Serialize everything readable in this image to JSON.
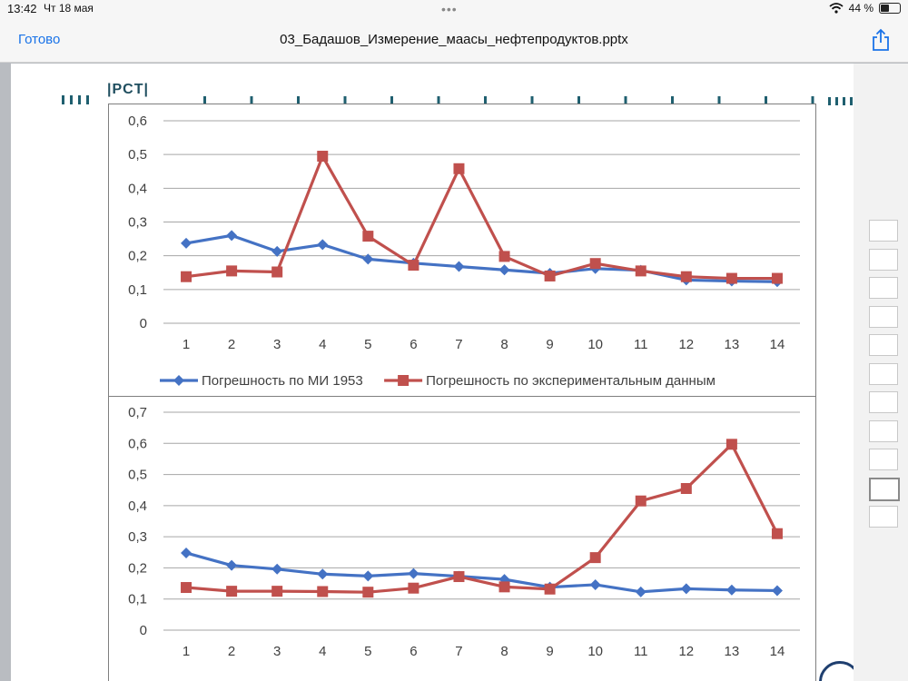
{
  "status_bar": {
    "time": "13:42",
    "date": "Чт 18 мая",
    "battery": "44 %",
    "battery_level": 0.44
  },
  "nav": {
    "done_label": "Готово",
    "file_title": "03_Бадашов_Измерение_маасы_нефтепродуктов.pptx"
  },
  "slide": {
    "logo_text": "|PCT|"
  },
  "colors": {
    "series_blue": "#4472c4",
    "series_red": "#c0504d",
    "link_blue": "#1a73e8"
  },
  "icons": {
    "share": "share-icon",
    "wifi": "wifi-icon",
    "battery": "battery-icon"
  },
  "thumbnails": {
    "count": 11,
    "active_index": 9
  },
  "chart_data": [
    {
      "type": "line",
      "categories": [
        "1",
        "2",
        "3",
        "4",
        "5",
        "6",
        "7",
        "8",
        "9",
        "10",
        "11",
        "12",
        "13",
        "14"
      ],
      "ylim": [
        0,
        0.6
      ],
      "yticks": [
        "0",
        "0,1",
        "0,2",
        "0,3",
        "0,4",
        "0,5",
        "0,6"
      ],
      "grid": true,
      "legend_position": "bottom",
      "series": [
        {
          "name": "Погрешность по МИ 1953",
          "marker": "diamond",
          "values": [
            0.237,
            0.26,
            0.213,
            0.233,
            0.19,
            0.178,
            0.168,
            0.158,
            0.148,
            0.162,
            0.157,
            0.128,
            0.125,
            0.123
          ]
        },
        {
          "name": "Погрешность по экспериментальным данным",
          "marker": "square",
          "values": [
            0.138,
            0.155,
            0.152,
            0.495,
            0.258,
            0.172,
            0.458,
            0.198,
            0.14,
            0.177,
            0.155,
            0.138,
            0.133,
            0.133
          ]
        }
      ]
    },
    {
      "type": "line",
      "categories": [
        "1",
        "2",
        "3",
        "4",
        "5",
        "6",
        "7",
        "8",
        "9",
        "10",
        "11",
        "12",
        "13",
        "14"
      ],
      "ylim": [
        0,
        0.7
      ],
      "yticks": [
        "0",
        "0,1",
        "0,2",
        "0,3",
        "0,4",
        "0,5",
        "0,6",
        "0,7"
      ],
      "grid": true,
      "legend_position": "bottom",
      "series": [
        {
          "name": "Погрешность по МИ 1953",
          "marker": "diamond",
          "values": [
            0.248,
            0.208,
            0.196,
            0.18,
            0.174,
            0.182,
            0.173,
            0.163,
            0.138,
            0.146,
            0.123,
            0.133,
            0.129,
            0.127
          ]
        },
        {
          "name": "Погрешность по экспериментальным данным",
          "marker": "square",
          "values": [
            0.137,
            0.125,
            0.125,
            0.124,
            0.122,
            0.135,
            0.172,
            0.139,
            0.132,
            0.233,
            0.415,
            0.455,
            0.597,
            0.31
          ]
        }
      ]
    }
  ]
}
